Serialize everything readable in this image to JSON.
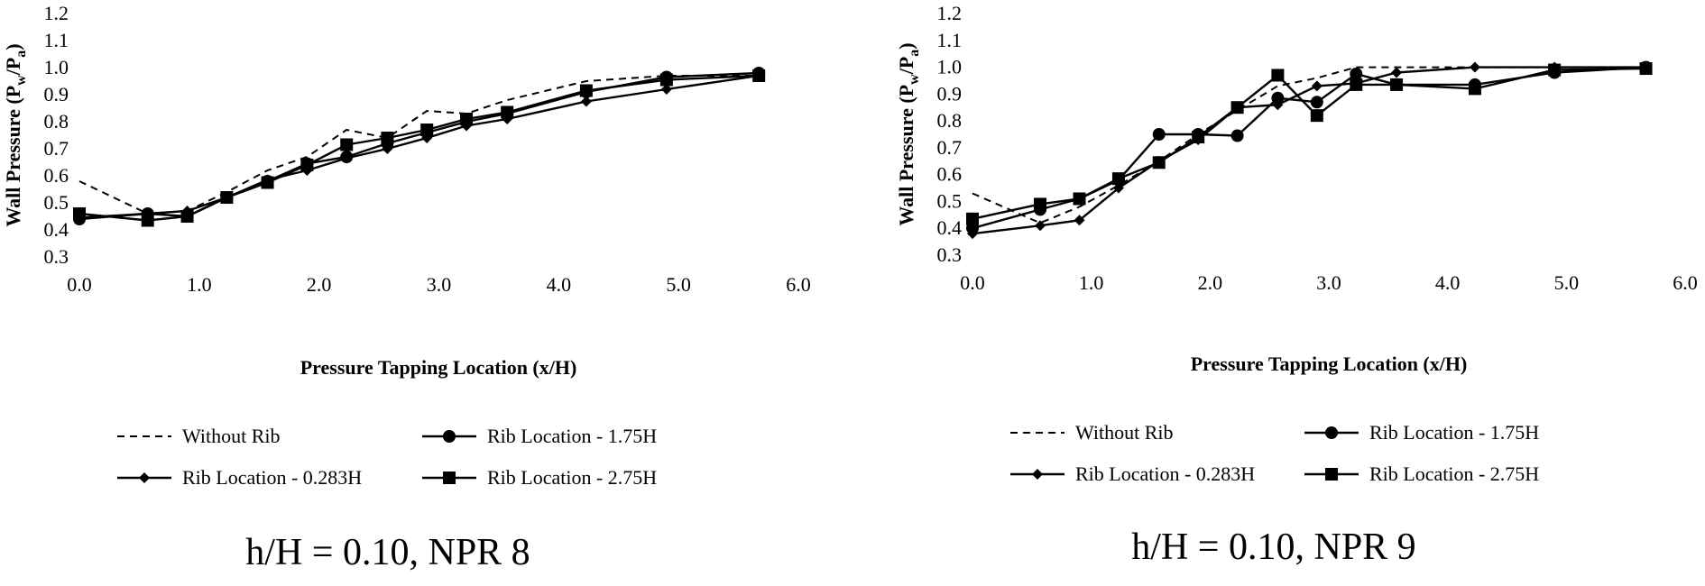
{
  "chart_data": [
    {
      "type": "line",
      "title": "",
      "caption": "h/H = 0.10, NPR 8",
      "xlabel": "Pressure Tapping Location (x/H)",
      "ylabel": "Wall Pressure (P",
      "ylabel_sub1": "w",
      "ylabel_mid": "/P",
      "ylabel_sub2": "a",
      "ylabel_end": ")",
      "xlim": [
        0,
        6
      ],
      "ylim": [
        0.3,
        1.2
      ],
      "xticks": [
        "0.0",
        "1.0",
        "2.0",
        "3.0",
        "4.0",
        "5.0",
        "6.0"
      ],
      "yticks": [
        "0.3",
        "0.4",
        "0.5",
        "0.6",
        "0.7",
        "0.8",
        "0.9",
        "1.0",
        "1.1",
        "1.2"
      ],
      "legend_position": "bottom",
      "series": [
        {
          "name": "Without Rib",
          "style": "dashed",
          "marker": "none",
          "x": [
            0.0,
            0.57,
            0.9,
            1.23,
            1.57,
            1.9,
            2.23,
            2.57,
            2.9,
            3.23,
            3.57,
            4.23,
            4.9,
            5.67
          ],
          "y": [
            0.58,
            0.46,
            0.47,
            0.54,
            0.62,
            0.67,
            0.77,
            0.74,
            0.84,
            0.83,
            0.88,
            0.95,
            0.97,
            0.97
          ]
        },
        {
          "name": "Rib Location - 0.283H",
          "style": "solid",
          "marker": "diamond",
          "x": [
            0.0,
            0.57,
            0.9,
            1.23,
            1.57,
            1.9,
            2.23,
            2.57,
            2.9,
            3.23,
            3.57,
            4.23,
            4.9,
            5.67
          ],
          "y": [
            0.445,
            0.46,
            0.47,
            0.52,
            0.585,
            0.62,
            0.665,
            0.7,
            0.74,
            0.785,
            0.81,
            0.875,
            0.92,
            0.97
          ]
        },
        {
          "name": "Rib Location - 1.75H",
          "style": "solid",
          "marker": "circle",
          "x": [
            0.0,
            0.57,
            0.9,
            1.23,
            1.57,
            1.9,
            2.23,
            2.57,
            2.9,
            3.23,
            3.57,
            4.23,
            4.9,
            5.67
          ],
          "y": [
            0.44,
            0.46,
            0.45,
            0.52,
            0.58,
            0.645,
            0.67,
            0.72,
            0.76,
            0.8,
            0.83,
            0.91,
            0.965,
            0.98
          ]
        },
        {
          "name": "Rib Location - 2.75H",
          "style": "solid",
          "marker": "square",
          "x": [
            0.0,
            0.57,
            0.9,
            1.23,
            1.57,
            1.9,
            2.23,
            2.57,
            2.9,
            3.23,
            3.57,
            4.23,
            4.9,
            5.67
          ],
          "y": [
            0.46,
            0.435,
            0.45,
            0.52,
            0.575,
            0.64,
            0.715,
            0.74,
            0.77,
            0.81,
            0.835,
            0.915,
            0.955,
            0.97
          ]
        }
      ]
    },
    {
      "type": "line",
      "title": "",
      "caption": "h/H = 0.10, NPR 9",
      "xlabel": "Pressure Tapping Location (x/H)",
      "ylabel": "Wall Pressure (P",
      "ylabel_sub1": "w",
      "ylabel_mid": "/P",
      "ylabel_sub2": "a",
      "ylabel_end": ")",
      "xlim": [
        0,
        6
      ],
      "ylim": [
        0.3,
        1.2
      ],
      "xticks": [
        "0.0",
        "1.0",
        "2.0",
        "3.0",
        "4.0",
        "5.0",
        "6.0"
      ],
      "yticks": [
        "0.3",
        "0.4",
        "0.5",
        "0.6",
        "0.7",
        "0.8",
        "0.9",
        "1.0",
        "1.1",
        "1.2"
      ],
      "legend_position": "bottom",
      "series": [
        {
          "name": "Without Rib",
          "style": "dashed",
          "marker": "none",
          "x": [
            0.0,
            0.57,
            0.9,
            1.23,
            1.57,
            1.9,
            2.23,
            2.57,
            2.9,
            3.23,
            3.57,
            4.23,
            4.9,
            5.67
          ],
          "y": [
            0.53,
            0.42,
            0.48,
            0.56,
            0.65,
            0.75,
            0.84,
            0.93,
            0.96,
            1.0,
            1.0,
            1.0,
            1.0,
            1.0
          ]
        },
        {
          "name": "Rib Location - 0.283H",
          "style": "solid",
          "marker": "diamond",
          "x": [
            0.0,
            0.57,
            0.9,
            1.23,
            1.57,
            1.9,
            2.23,
            2.57,
            2.9,
            3.23,
            3.57,
            4.23,
            4.9,
            5.67
          ],
          "y": [
            0.38,
            0.41,
            0.43,
            0.55,
            0.65,
            0.73,
            0.85,
            0.86,
            0.93,
            0.94,
            0.98,
            1.0,
            1.0,
            1.0
          ]
        },
        {
          "name": "Rib Location - 1.75H",
          "style": "solid",
          "marker": "circle",
          "x": [
            0.0,
            0.57,
            0.9,
            1.23,
            1.57,
            1.9,
            2.23,
            2.57,
            2.9,
            3.23,
            3.57,
            4.23,
            4.9,
            5.67
          ],
          "y": [
            0.4,
            0.47,
            0.51,
            0.58,
            0.75,
            0.75,
            0.745,
            0.885,
            0.87,
            0.975,
            0.935,
            0.935,
            0.98,
            1.0
          ]
        },
        {
          "name": "Rib Location - 2.75H",
          "style": "solid",
          "marker": "square",
          "x": [
            0.0,
            0.57,
            0.9,
            1.23,
            1.57,
            1.9,
            2.23,
            2.57,
            2.9,
            3.23,
            3.57,
            4.23,
            4.9,
            5.67
          ],
          "y": [
            0.435,
            0.49,
            0.51,
            0.585,
            0.645,
            0.74,
            0.85,
            0.97,
            0.82,
            0.935,
            0.935,
            0.92,
            0.99,
            0.995
          ]
        }
      ]
    }
  ]
}
